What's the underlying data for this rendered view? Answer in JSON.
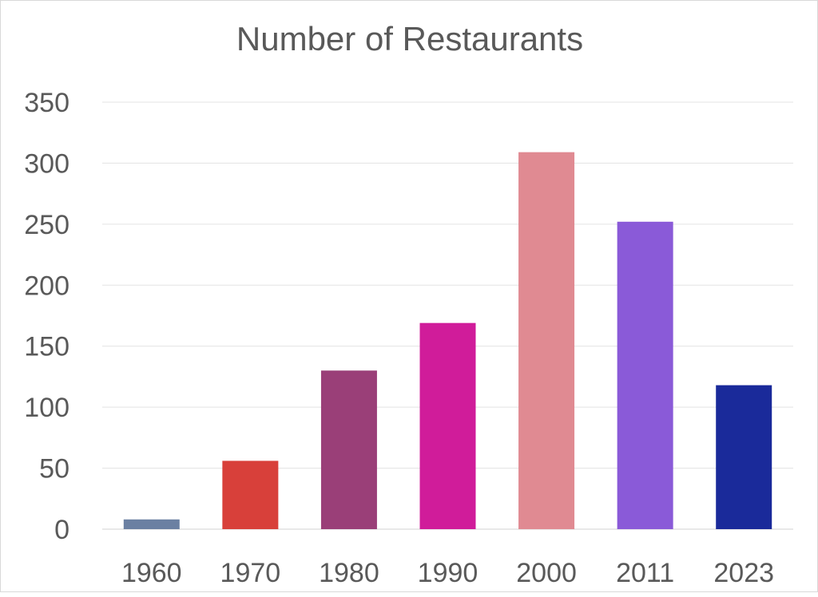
{
  "chart_data": {
    "type": "bar",
    "title": "Number of Restaurants",
    "xlabel": "",
    "ylabel": "",
    "categories": [
      "1960",
      "1970",
      "1980",
      "1990",
      "2000",
      "2011",
      "2023"
    ],
    "values": [
      8,
      56,
      130,
      169,
      309,
      252,
      118
    ],
    "colors": [
      "#6b80a2",
      "#d8403a",
      "#9a3f78",
      "#d01c9a",
      "#e08a92",
      "#8a5ad8",
      "#1a2a9a"
    ],
    "ylim": [
      0,
      350
    ],
    "yticks": [
      0,
      50,
      100,
      150,
      200,
      250,
      300,
      350
    ],
    "grid": true,
    "legend": "none"
  }
}
